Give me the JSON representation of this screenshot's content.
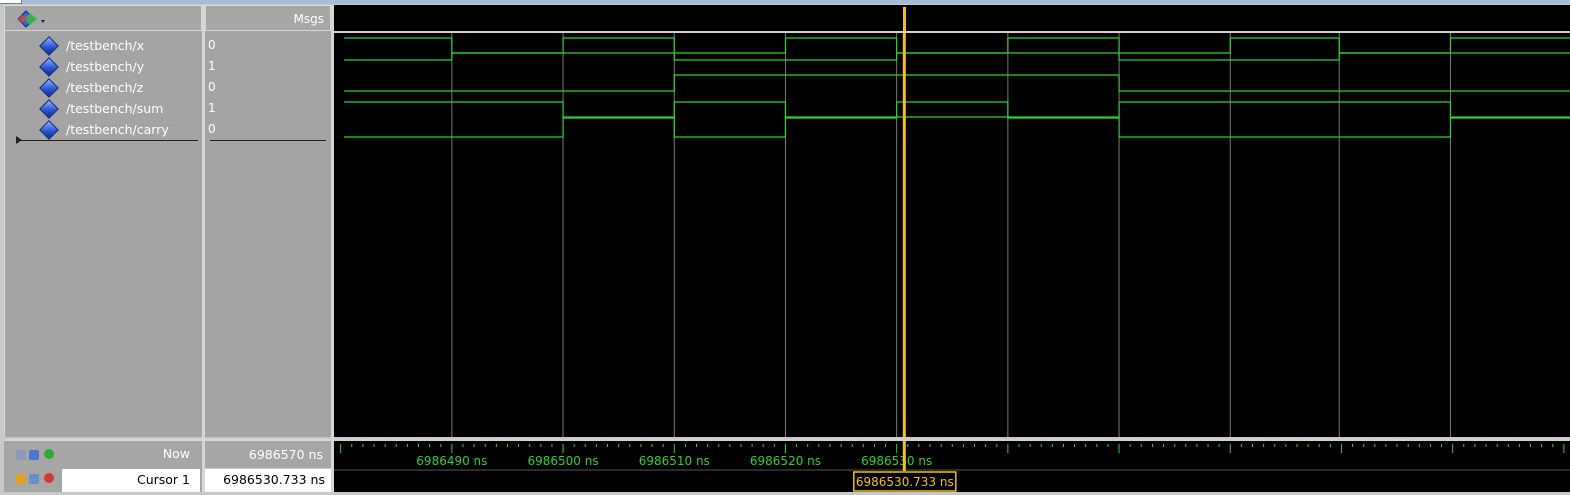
{
  "header": {
    "msgs_label": "Msgs"
  },
  "toolbar": {
    "icon": "wave-add-icon"
  },
  "signals": [
    {
      "name": "/testbench/x",
      "value": "0"
    },
    {
      "name": "/testbench/y",
      "value": "1"
    },
    {
      "name": "/testbench/z",
      "value": "0"
    },
    {
      "name": "/testbench/sum",
      "value": "1"
    },
    {
      "name": "/testbench/carry",
      "value": "0"
    }
  ],
  "footer": {
    "now_label": "Now",
    "now_value": "6986570 ns",
    "cursor_label": "Cursor 1",
    "cursor_value": "6986530.733 ns"
  },
  "timeline": {
    "tick_labels": [
      "6986490 ns",
      "6986500 ns",
      "6986510 ns",
      "6986520 ns",
      "6986530 ns"
    ],
    "tick_times_ns": [
      6986490,
      6986500,
      6986510,
      6986520,
      6986530
    ],
    "cursor_label": "6986530.733 ns",
    "cursor_time_ns": 6986530.733
  },
  "waveforms": {
    "colors": {
      "wave": "#2fd12f",
      "grid": "#7a7a7a",
      "cursor": "#f0c020",
      "tick_text": "#2fd12f"
    },
    "time_points_ns": [
      6986480.3,
      6986490,
      6986500,
      6986510,
      6986520,
      6986530,
      6986539.8,
      6986540
    ],
    "transitions_ns": [
      6986490,
      6986500,
      6986510,
      6986520,
      6986530,
      6986539.8
    ],
    "levels": {
      "x": [
        1,
        0,
        1,
        0,
        1,
        0,
        1,
        0,
        1,
        0,
        1
      ],
      "y": [
        0,
        1,
        1,
        0,
        0,
        1,
        1,
        0,
        0,
        1,
        1
      ],
      "z": [
        0,
        0,
        0,
        1,
        1,
        1,
        1,
        0,
        0,
        0,
        0
      ],
      "sum": [
        1,
        1,
        0,
        1,
        0,
        1,
        0,
        1,
        1,
        1,
        0
      ],
      "carry": [
        0,
        0,
        1,
        0,
        1,
        1,
        1,
        0,
        0,
        0,
        1
      ]
    },
    "segment_bounds_ns": [
      6986480.3,
      6986490,
      6986500,
      6986510,
      6986520,
      6986530,
      6986540,
      6986550,
      6986560,
      6986569.8,
      6986579.8,
      6986591.1
    ]
  }
}
